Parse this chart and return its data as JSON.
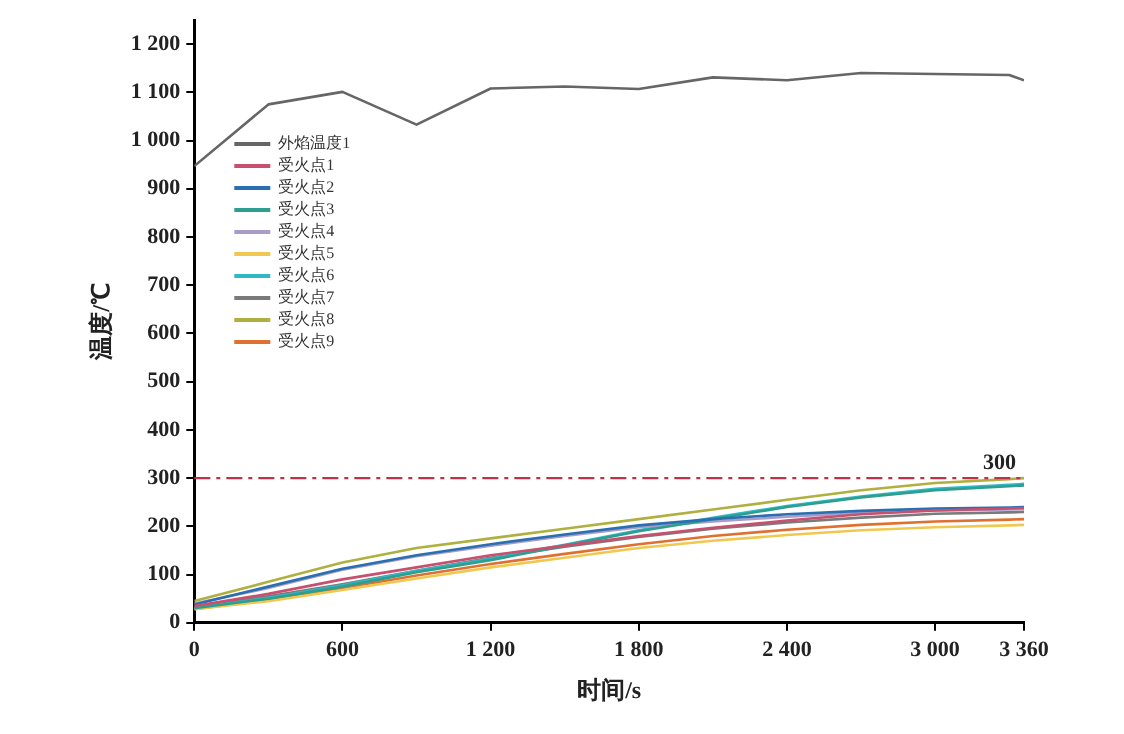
{
  "chart_data": {
    "type": "line",
    "xlabel": "时间/s",
    "ylabel": "温度/℃",
    "x": [
      0,
      300,
      600,
      900,
      1200,
      1500,
      1800,
      2100,
      2400,
      2700,
      3000,
      3300,
      3360
    ],
    "xlim": [
      0,
      3360
    ],
    "xticks": [
      0,
      600,
      {
        "value": 1200,
        "label": "1 200"
      },
      {
        "value": 1800,
        "label": "1 800"
      },
      {
        "value": 2400,
        "label": "2 400"
      },
      {
        "value": 3000,
        "label": "3 000"
      },
      {
        "value": 3360,
        "label": "3 360"
      }
    ],
    "ylim": [
      0,
      1250
    ],
    "yticks": [
      0,
      100,
      200,
      300,
      400,
      500,
      600,
      700,
      800,
      900,
      {
        "value": 1000,
        "label": "1 000"
      },
      {
        "value": 1100,
        "label": "1 100"
      },
      {
        "value": 1200,
        "label": "1 200"
      }
    ],
    "grid": false,
    "legend": "top left",
    "marker": "none",
    "line_style": "solid",
    "ref_lines": [
      {
        "axis": "y",
        "value": 300,
        "label": "300",
        "color": "#c0304a",
        "line_style": "dashdot"
      }
    ],
    "series": [
      {
        "name": "外焰温度1",
        "color": "#666666",
        "values": [
          947,
          1075,
          1101,
          1033,
          1108,
          1112,
          1107,
          1131,
          1125,
          1140,
          1138,
          1136,
          1125
        ]
      },
      {
        "name": "受火点1",
        "color": "#c8506e",
        "values": [
          35,
          60,
          90,
          115,
          140,
          160,
          180,
          197,
          212,
          225,
          233,
          237,
          238
        ]
      },
      {
        "name": "受火点2",
        "color": "#2a6fb0",
        "values": [
          38,
          75,
          112,
          140,
          163,
          183,
          202,
          215,
          225,
          232,
          237,
          239,
          240
        ]
      },
      {
        "name": "受火点3",
        "color": "#2e9e8e",
        "values": [
          30,
          50,
          75,
          105,
          130,
          160,
          190,
          215,
          240,
          260,
          275,
          283,
          285
        ]
      },
      {
        "name": "受火点4",
        "color": "#a89cc8",
        "values": [
          40,
          72,
          110,
          138,
          160,
          180,
          198,
          210,
          220,
          228,
          233,
          235,
          236
        ]
      },
      {
        "name": "受火点5",
        "color": "#f0c850",
        "values": [
          28,
          45,
          68,
          92,
          115,
          135,
          155,
          170,
          182,
          192,
          198,
          202,
          203
        ]
      },
      {
        "name": "受火点6",
        "color": "#30b8c8",
        "values": [
          30,
          52,
          78,
          108,
          133,
          162,
          192,
          218,
          242,
          262,
          278,
          286,
          288
        ]
      },
      {
        "name": "受火点7",
        "color": "#7a7a7a",
        "values": [
          32,
          55,
          80,
          108,
          135,
          158,
          178,
          195,
          208,
          218,
          226,
          229,
          230
        ]
      },
      {
        "name": "受火点8",
        "color": "#b0b040",
        "values": [
          45,
          85,
          125,
          155,
          175,
          195,
          215,
          235,
          255,
          275,
          290,
          298,
          300
        ]
      },
      {
        "name": "受火点9",
        "color": "#e07030",
        "values": [
          28,
          48,
          72,
          98,
          122,
          143,
          163,
          180,
          193,
          203,
          210,
          214,
          215
        ]
      }
    ]
  }
}
